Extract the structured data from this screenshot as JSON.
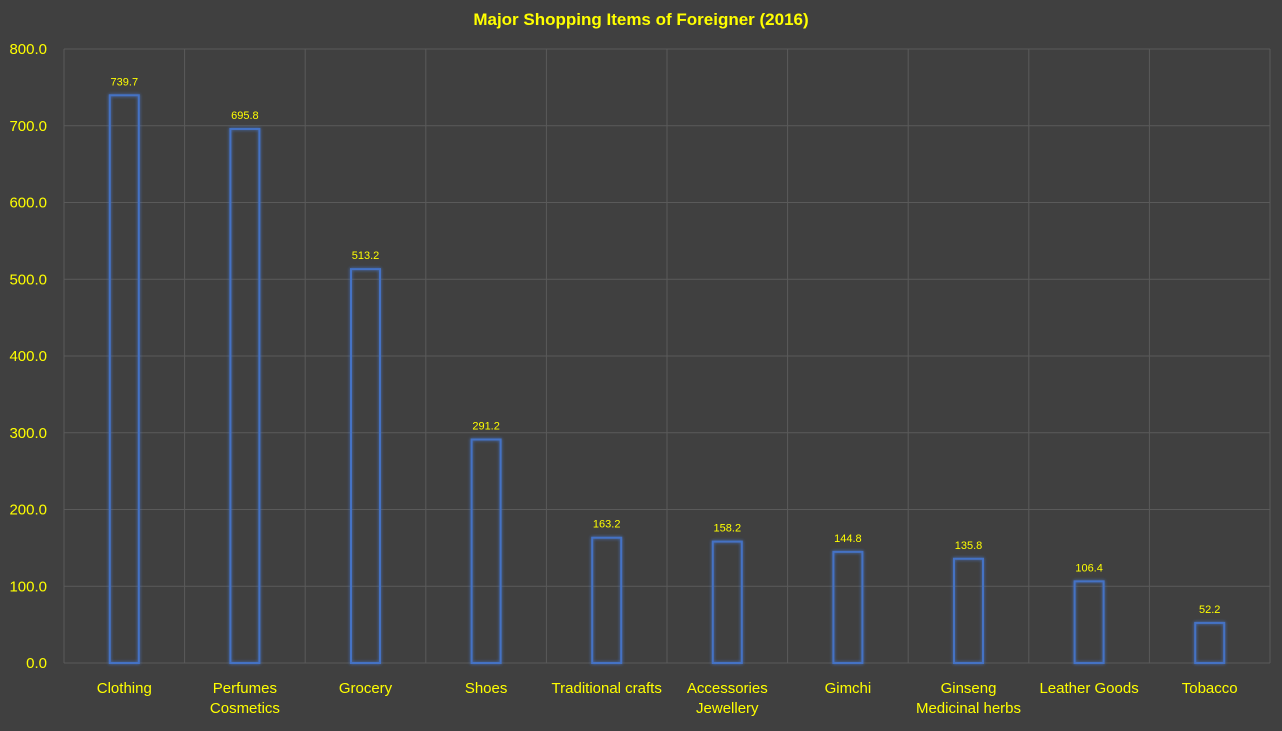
{
  "colors": {
    "background": "#404040",
    "text": "#FFFF00",
    "bar_outline": "#4472C4",
    "bar_glow": "#2F5FD0",
    "gridline": "#5A5A5A"
  },
  "chart_data": {
    "type": "bar",
    "title": "Major Shopping Items of Foreigner (2016)",
    "xlabel": "",
    "ylabel": "",
    "ylim": [
      0,
      800
    ],
    "y_ticks": [
      0,
      100,
      200,
      300,
      400,
      500,
      600,
      700,
      800
    ],
    "y_tick_labels": [
      "0.0",
      "100.0",
      "200.0",
      "300.0",
      "400.0",
      "500.0",
      "600.0",
      "700.0",
      "800.0"
    ],
    "categories": [
      [
        "Clothing"
      ],
      [
        "Perfumes",
        "Cosmetics"
      ],
      [
        "Grocery"
      ],
      [
        "Shoes"
      ],
      [
        "Traditional crafts"
      ],
      [
        "Accessories",
        "Jewellery"
      ],
      [
        "Gimchi"
      ],
      [
        "Ginseng",
        "Medicinal herbs"
      ],
      [
        "Leather Goods"
      ],
      [
        "Tobacco"
      ]
    ],
    "values": [
      739.7,
      695.8,
      513.2,
      291.2,
      163.2,
      158.2,
      144.8,
      135.8,
      106.4,
      52.2
    ],
    "data_labels": [
      "739.7",
      "695.8",
      "513.2",
      "291.2",
      "163.2",
      "158.2",
      "144.8",
      "135.8",
      "106.4",
      "52.2"
    ],
    "grid": true,
    "legend": "none"
  }
}
